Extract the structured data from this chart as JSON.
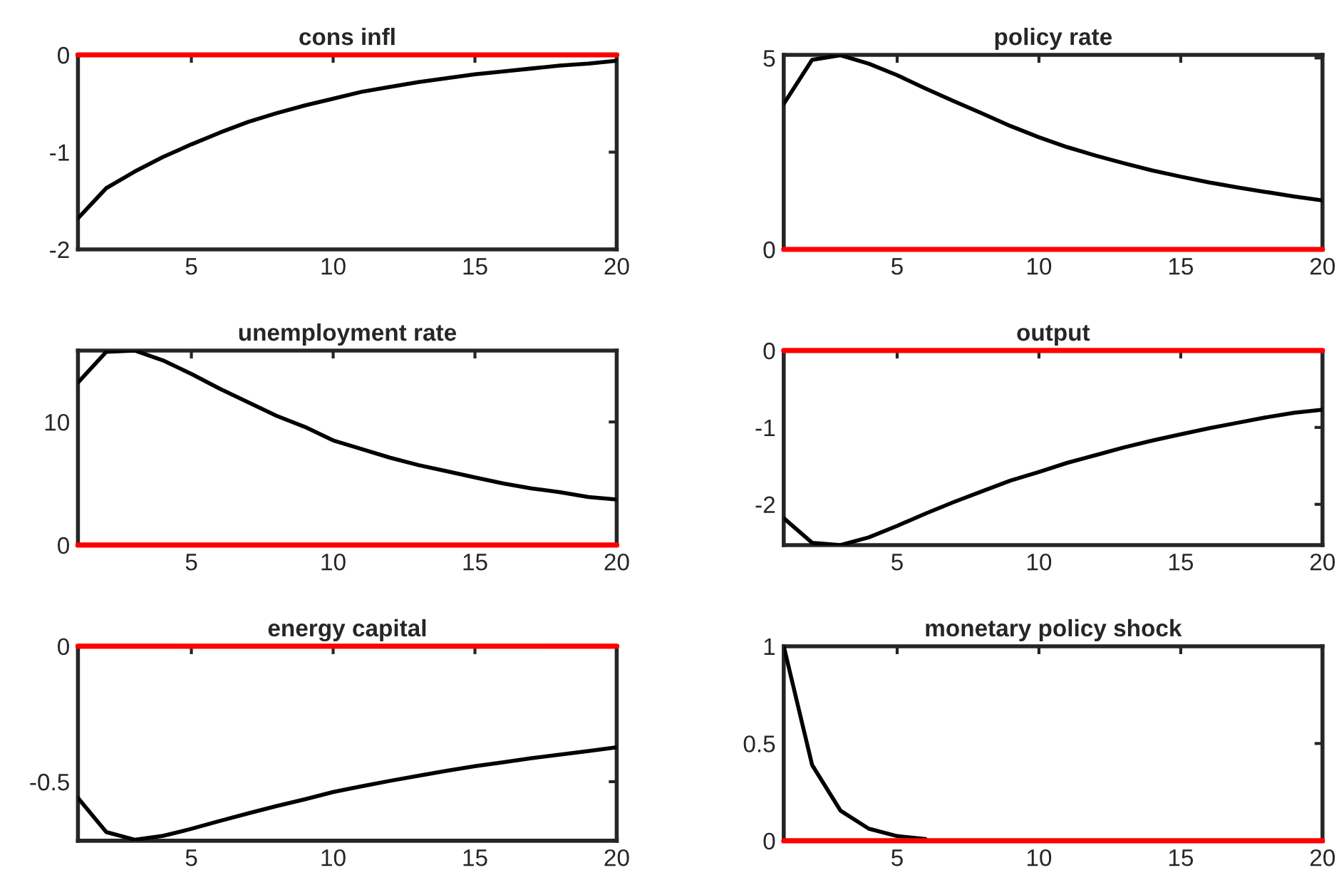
{
  "chart_data": [
    {
      "type": "line",
      "title": "cons infl",
      "x": [
        1,
        2,
        3,
        4,
        5,
        6,
        7,
        8,
        9,
        10,
        11,
        12,
        13,
        14,
        15,
        16,
        17,
        18,
        19,
        20
      ],
      "xlim": [
        1,
        20
      ],
      "xticks": [
        5,
        10,
        15,
        20
      ],
      "ylim": [
        -2,
        0
      ],
      "yticks": [
        -2,
        -1,
        0
      ],
      "grid": false,
      "line_style": "solid",
      "marker": "none",
      "series": [
        {
          "color": "#000000",
          "values": [
            -1.68,
            -1.37,
            -1.2,
            -1.05,
            -0.92,
            -0.8,
            -0.69,
            -0.6,
            -0.52,
            -0.45,
            -0.38,
            -0.33,
            -0.28,
            -0.24,
            -0.2,
            -0.17,
            -0.14,
            -0.11,
            -0.09,
            -0.06
          ]
        }
      ],
      "ref_lines": [
        {
          "axis": "y",
          "value": 0,
          "color": "#ff0000",
          "line_style": "solid"
        }
      ]
    },
    {
      "type": "line",
      "title": "policy rate",
      "x": [
        1,
        2,
        3,
        4,
        5,
        6,
        7,
        8,
        9,
        10,
        11,
        12,
        13,
        14,
        15,
        16,
        17,
        18,
        19,
        20
      ],
      "xlim": [
        1,
        20
      ],
      "xticks": [
        5,
        10,
        15,
        20
      ],
      "ylim": [
        0,
        5.08
      ],
      "yticks": [
        0,
        5
      ],
      "grid": false,
      "line_style": "solid",
      "marker": "none",
      "series": [
        {
          "color": "#000000",
          "values": [
            3.8,
            4.95,
            5.07,
            4.85,
            4.55,
            4.2,
            3.87,
            3.55,
            3.22,
            2.93,
            2.67,
            2.45,
            2.25,
            2.06,
            1.9,
            1.75,
            1.62,
            1.5,
            1.38,
            1.28
          ]
        }
      ],
      "ref_lines": [
        {
          "axis": "y",
          "value": 0,
          "color": "#ff0000",
          "line_style": "solid"
        }
      ]
    },
    {
      "type": "line",
      "title": "unemployment rate",
      "x": [
        1,
        2,
        3,
        4,
        5,
        6,
        7,
        8,
        9,
        10,
        11,
        12,
        13,
        14,
        15,
        16,
        17,
        18,
        19,
        20
      ],
      "xlim": [
        1,
        20
      ],
      "xticks": [
        5,
        10,
        15,
        20
      ],
      "ylim": [
        0,
        15.8
      ],
      "yticks": [
        0,
        10
      ],
      "grid": false,
      "line_style": "solid",
      "marker": "none",
      "series": [
        {
          "color": "#000000",
          "values": [
            13.2,
            15.7,
            15.8,
            15.0,
            13.9,
            12.7,
            11.6,
            10.5,
            9.6,
            8.5,
            7.8,
            7.1,
            6.5,
            6.0,
            5.5,
            5.0,
            4.6,
            4.3,
            3.9,
            3.7
          ]
        }
      ],
      "ref_lines": [
        {
          "axis": "y",
          "value": 0,
          "color": "#ff0000",
          "line_style": "solid"
        }
      ]
    },
    {
      "type": "line",
      "title": "output",
      "x": [
        1,
        2,
        3,
        4,
        5,
        6,
        7,
        8,
        9,
        10,
        11,
        12,
        13,
        14,
        15,
        16,
        17,
        18,
        19,
        20
      ],
      "xlim": [
        1,
        20
      ],
      "xticks": [
        5,
        10,
        15,
        20
      ],
      "ylim": [
        -2.53,
        0
      ],
      "yticks": [
        -2,
        -1,
        0
      ],
      "grid": false,
      "line_style": "solid",
      "marker": "none",
      "series": [
        {
          "color": "#000000",
          "values": [
            -2.18,
            -2.5,
            -2.53,
            -2.43,
            -2.28,
            -2.12,
            -1.97,
            -1.83,
            -1.69,
            -1.58,
            -1.46,
            -1.36,
            -1.26,
            -1.17,
            -1.09,
            -1.01,
            -0.94,
            -0.87,
            -0.81,
            -0.77
          ]
        }
      ],
      "ref_lines": [
        {
          "axis": "y",
          "value": 0,
          "color": "#ff0000",
          "line_style": "solid"
        }
      ]
    },
    {
      "type": "line",
      "title": "energy capital",
      "x": [
        1,
        2,
        3,
        4,
        5,
        6,
        7,
        8,
        9,
        10,
        11,
        12,
        13,
        14,
        15,
        16,
        17,
        18,
        19,
        20
      ],
      "xlim": [
        1,
        20
      ],
      "xticks": [
        5,
        10,
        15,
        20
      ],
      "ylim": [
        -0.718,
        0
      ],
      "yticks": [
        -0.5,
        0
      ],
      "grid": false,
      "line_style": "solid",
      "marker": "none",
      "series": [
        {
          "color": "#000000",
          "values": [
            -0.56,
            -0.686,
            -0.714,
            -0.7,
            -0.674,
            -0.645,
            -0.617,
            -0.59,
            -0.565,
            -0.538,
            -0.517,
            -0.497,
            -0.478,
            -0.46,
            -0.443,
            -0.428,
            -0.413,
            -0.4,
            -0.387,
            -0.373
          ]
        }
      ],
      "ref_lines": [
        {
          "axis": "y",
          "value": 0,
          "color": "#ff0000",
          "line_style": "solid"
        }
      ]
    },
    {
      "type": "line",
      "title": "monetary policy shock",
      "x": [
        1,
        2,
        3,
        4,
        5,
        6
      ],
      "xlim": [
        1,
        20
      ],
      "xticks": [
        5,
        10,
        15,
        20
      ],
      "ylim": [
        0,
        1
      ],
      "yticks": [
        0,
        0.5,
        1
      ],
      "grid": false,
      "line_style": "solid",
      "marker": "none",
      "series": [
        {
          "color": "#000000",
          "values": [
            1,
            0.39,
            0.155,
            0.062,
            0.024,
            0.009
          ]
        }
      ],
      "ref_lines": [
        {
          "axis": "y",
          "value": 0,
          "color": "#ff0000",
          "line_style": "solid"
        }
      ]
    }
  ]
}
